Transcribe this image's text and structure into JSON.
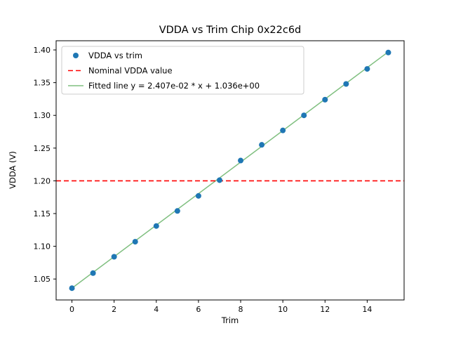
{
  "chart_data": {
    "type": "scatter",
    "title": "VDDA vs Trim Chip 0x22c6d",
    "xlabel": "Trim",
    "ylabel": "VDDA (V)",
    "xlim": [
      -0.75,
      15.75
    ],
    "ylim": [
      1.018,
      1.414
    ],
    "x_ticks": [
      0,
      2,
      4,
      6,
      8,
      10,
      12,
      14
    ],
    "y_ticks": [
      1.05,
      1.1,
      1.15,
      1.2,
      1.25,
      1.3,
      1.35,
      1.4
    ],
    "grid": false,
    "legend_position": "upper left",
    "series": [
      {
        "name": "VDDA vs trim",
        "type": "scatter",
        "color": "#1f77b4",
        "x": [
          0,
          1,
          2,
          3,
          4,
          5,
          6,
          7,
          8,
          9,
          10,
          11,
          12,
          13,
          14,
          15
        ],
        "y": [
          1.036,
          1.059,
          1.084,
          1.107,
          1.131,
          1.154,
          1.177,
          1.201,
          1.231,
          1.255,
          1.277,
          1.3,
          1.324,
          1.348,
          1.371,
          1.396
        ]
      },
      {
        "name": "Nominal VDDA value",
        "type": "hline",
        "color": "#ff0000",
        "linestyle": "dashed",
        "y": 1.2
      },
      {
        "name": "Fitted line y = 2.407e-02 * x + 1.036e+00",
        "type": "line",
        "color": "#008000",
        "opacity": 0.5,
        "slope": 0.02407,
        "intercept": 1.036,
        "x_range": [
          0,
          15
        ]
      }
    ]
  }
}
